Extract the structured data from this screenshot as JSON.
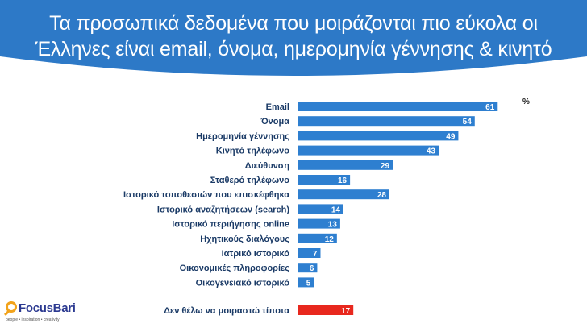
{
  "header": {
    "title_line1": "Τα προσωπικά δεδομένα που μοιράζονται πιο εύκολα οι",
    "title_line2": "Έλληνες είναι email, όνομα, ημερομηνία γέννησης & κινητό",
    "background": "#2d79c7"
  },
  "logo": {
    "name": "FocusBari",
    "tagline": "people • inspiration • creativity",
    "icon": "magnifier-icon",
    "ring_color": "#f2a31b",
    "text_color": "#2b3990"
  },
  "chart_data": {
    "type": "bar",
    "orientation": "horizontal",
    "unit_label": "%",
    "categories": [
      "Email",
      "Όνομα",
      "Ημερομηνία γέννησης",
      "Κινητό τηλέφωνο",
      "Διεύθυνση",
      "Σταθερό τηλέφωνο",
      "Ιστορικό τοποθεσιών που επισκέφθηκα",
      "Ιστορικό αναζητήσεων (search)",
      "Ιστορικό περιήγησης online",
      "Ηχητικούς διαλόγους",
      "Ιατρικό ιστορικό",
      "Οικονομικές πληροφορίες",
      "Οικογενειακό ιστορικό"
    ],
    "values": [
      61,
      54,
      49,
      43,
      29,
      16,
      28,
      14,
      13,
      12,
      7,
      6,
      5
    ],
    "bar_color": "#2e7fd0",
    "extra": {
      "category": "Δεν θέλω να μοιραστώ τίποτα",
      "value": 17,
      "color": "#e8281e"
    },
    "xlim": [
      0,
      66
    ],
    "grid": false,
    "legend": "none"
  }
}
